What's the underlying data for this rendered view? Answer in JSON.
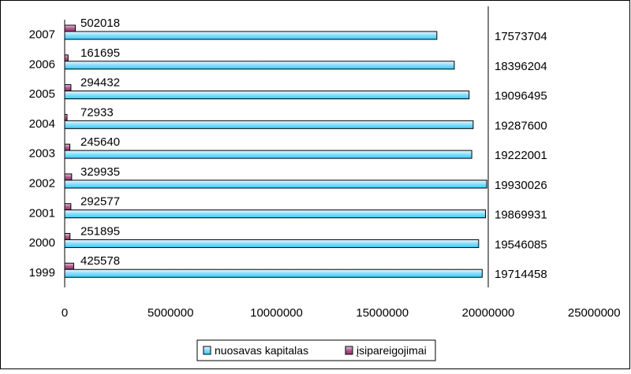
{
  "chart_data": {
    "type": "bar",
    "orientation": "horizontal",
    "categories": [
      "1999",
      "2000",
      "2001",
      "2002",
      "2003",
      "2004",
      "2005",
      "2006",
      "2007"
    ],
    "series": [
      {
        "name": "nuosavas kapitalas",
        "values": [
          19714458,
          19546085,
          19869931,
          19930026,
          19222001,
          19287600,
          19096495,
          18396204,
          17573704
        ],
        "color": "#33CCFF"
      },
      {
        "name": "įsipareigojimai",
        "values": [
          425578,
          251895,
          292577,
          329935,
          245640,
          72933,
          294432,
          161695,
          502018
        ],
        "color": "#993366"
      }
    ],
    "title": "",
    "xlabel": "",
    "ylabel": "",
    "xlim": [
      0,
      25000000
    ],
    "xticks": [
      "0",
      "5000000",
      "10000000",
      "15000000",
      "20000000",
      "25000000"
    ],
    "grid": "vertical line at 20000000",
    "legend": "bottom-center"
  }
}
